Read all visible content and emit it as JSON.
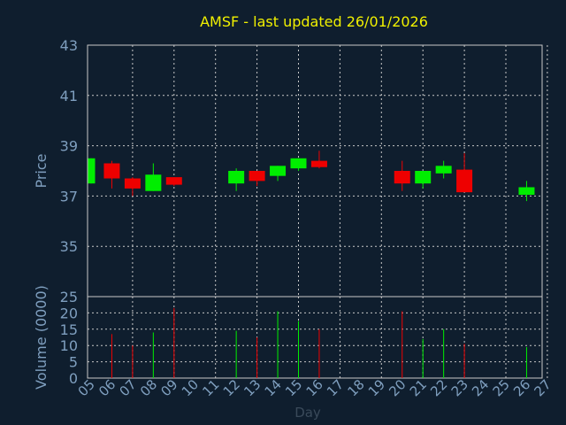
{
  "title": "AMSF - last updated 26/01/2026",
  "colors": {
    "background": "#0f1e2e",
    "plot_border": "#c8c8c8",
    "grid": "#c8c8c8",
    "axis_text": "#7f9fbf",
    "title": "#f0f000",
    "up": "#00ee00",
    "down": "#ee0000"
  },
  "chart_data": [
    {
      "type": "candlestick",
      "ylabel": "Price",
      "ylim": [
        33,
        43
      ],
      "yticks": [
        "35",
        "37",
        "39",
        "41",
        "43"
      ],
      "grid": true,
      "candles": [
        {
          "day": 5,
          "open": 37.5,
          "high": 38.5,
          "low": 37.5,
          "close": 38.5
        },
        {
          "day": 6,
          "open": 38.3,
          "high": 38.4,
          "low": 37.3,
          "close": 37.7
        },
        {
          "day": 7,
          "open": 37.7,
          "high": 37.75,
          "low": 37.0,
          "close": 37.3
        },
        {
          "day": 8,
          "open": 37.2,
          "high": 38.3,
          "low": 37.2,
          "close": 37.85
        },
        {
          "day": 9,
          "open": 37.75,
          "high": 37.75,
          "low": 37.4,
          "close": 37.45
        },
        {
          "day": 12,
          "open": 37.5,
          "high": 38.1,
          "low": 37.2,
          "close": 38.0
        },
        {
          "day": 13,
          "open": 38.0,
          "high": 38.0,
          "low": 37.4,
          "close": 37.6
        },
        {
          "day": 14,
          "open": 37.8,
          "high": 38.2,
          "low": 37.6,
          "close": 38.2
        },
        {
          "day": 15,
          "open": 38.1,
          "high": 38.5,
          "low": 38.0,
          "close": 38.5
        },
        {
          "day": 16,
          "open": 38.4,
          "high": 38.8,
          "low": 38.1,
          "close": 38.15
        },
        {
          "day": 20,
          "open": 38.0,
          "high": 38.4,
          "low": 37.2,
          "close": 37.5
        },
        {
          "day": 21,
          "open": 37.5,
          "high": 38.0,
          "low": 37.3,
          "close": 38.0
        },
        {
          "day": 22,
          "open": 37.9,
          "high": 38.4,
          "low": 37.7,
          "close": 38.2
        },
        {
          "day": 23,
          "open": 38.05,
          "high": 38.7,
          "low": 37.2,
          "close": 37.15
        },
        {
          "day": 26,
          "open": 37.05,
          "high": 37.6,
          "low": 36.8,
          "close": 37.35
        }
      ]
    },
    {
      "type": "bar",
      "ylabel": "Volume (0000)",
      "xlabel": "Day",
      "ylim": [
        0,
        25
      ],
      "yticks": [
        "0",
        "5",
        "10",
        "15",
        "20",
        "25"
      ],
      "grid": true,
      "categories": [
        "05",
        "06",
        "07",
        "08",
        "09",
        "10",
        "11",
        "12",
        "13",
        "14",
        "15",
        "16",
        "17",
        "18",
        "19",
        "20",
        "21",
        "22",
        "23",
        "24",
        "25",
        "26",
        "27"
      ],
      "volumes": [
        {
          "day": 5,
          "value": 0,
          "direction": "up"
        },
        {
          "day": 6,
          "value": 13.5,
          "direction": "down"
        },
        {
          "day": 7,
          "value": 10,
          "direction": "down"
        },
        {
          "day": 8,
          "value": 14,
          "direction": "up"
        },
        {
          "day": 9,
          "value": 21.5,
          "direction": "down"
        },
        {
          "day": 12,
          "value": 14.5,
          "direction": "up"
        },
        {
          "day": 13,
          "value": 12.5,
          "direction": "down"
        },
        {
          "day": 14,
          "value": 20.5,
          "direction": "up"
        },
        {
          "day": 15,
          "value": 17.5,
          "direction": "up"
        },
        {
          "day": 16,
          "value": 15,
          "direction": "down"
        },
        {
          "day": 20,
          "value": 20.5,
          "direction": "down"
        },
        {
          "day": 21,
          "value": 12,
          "direction": "up"
        },
        {
          "day": 22,
          "value": 15,
          "direction": "up"
        },
        {
          "day": 23,
          "value": 10.5,
          "direction": "down"
        },
        {
          "day": 26,
          "value": 9.5,
          "direction": "up"
        }
      ]
    }
  ]
}
